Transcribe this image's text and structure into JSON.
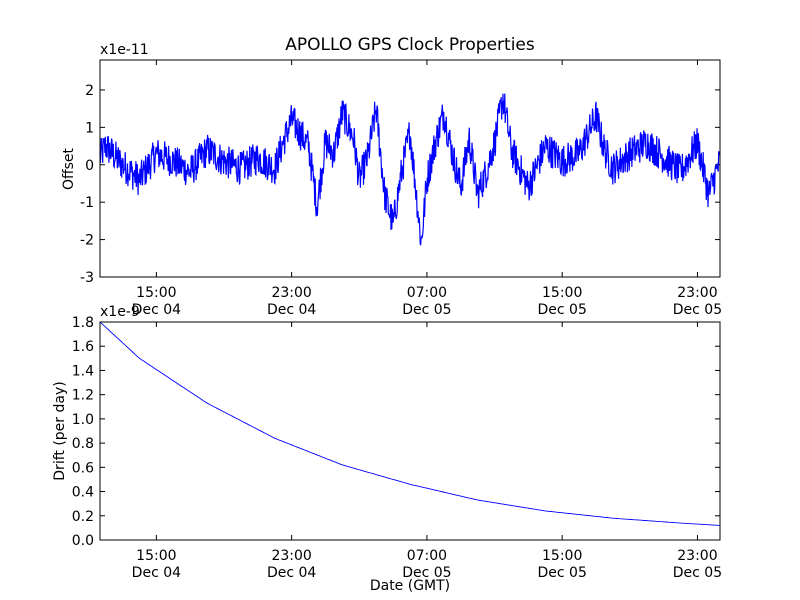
{
  "figure": {
    "title": "APOLLO GPS Clock Properties",
    "xlabel": "Date (GMT)"
  },
  "chart_data": [
    {
      "type": "line",
      "ylabel": "Offset",
      "y_scale_label": "x1e-11",
      "xlim": [
        "2014-12-04T11:40",
        "2014-12-06T00:20"
      ],
      "ylim": [
        -3,
        2.8
      ],
      "yticks": [
        -3,
        -2,
        -1,
        0,
        1,
        2
      ],
      "xticks": [
        {
          "line1": "15:00",
          "line2": "Dec 04"
        },
        {
          "line1": "23:00",
          "line2": "Dec 04"
        },
        {
          "line1": "07:00",
          "line2": "Dec 05"
        },
        {
          "line1": "15:00",
          "line2": "Dec 05"
        },
        {
          "line1": "23:00",
          "line2": "Dec 05"
        }
      ],
      "color": "#0000ff",
      "series": [
        {
          "x": [
            "2014-12-04T11:40",
            "2014-12-04T12:00",
            "2014-12-04T13:00",
            "2014-12-04T14:00",
            "2014-12-04T15:00",
            "2014-12-04T16:00",
            "2014-12-04T17:00",
            "2014-12-04T18:00",
            "2014-12-04T19:00",
            "2014-12-04T20:00",
            "2014-12-04T21:00",
            "2014-12-04T22:00",
            "2014-12-04T22:30",
            "2014-12-04T23:00",
            "2014-12-05T00:00",
            "2014-12-05T00:30",
            "2014-12-05T01:00",
            "2014-12-05T01:30",
            "2014-12-05T02:00",
            "2014-12-05T02:40",
            "2014-12-05T03:00",
            "2014-12-05T03:30",
            "2014-12-05T04:00",
            "2014-12-05T04:30",
            "2014-12-05T05:00",
            "2014-12-05T05:30",
            "2014-12-05T06:00",
            "2014-12-05T06:40",
            "2014-12-05T07:00",
            "2014-12-05T07:30",
            "2014-12-05T08:00",
            "2014-12-05T08:30",
            "2014-12-05T09:00",
            "2014-12-05T09:30",
            "2014-12-05T10:00",
            "2014-12-05T10:30",
            "2014-12-05T11:00",
            "2014-12-05T11:30",
            "2014-12-05T12:00",
            "2014-12-05T13:00",
            "2014-12-05T14:00",
            "2014-12-05T15:00",
            "2014-12-05T16:00",
            "2014-12-05T17:00",
            "2014-12-05T17:30",
            "2014-12-05T18:00",
            "2014-12-05T19:00",
            "2014-12-05T20:00",
            "2014-12-05T21:00",
            "2014-12-05T22:00",
            "2014-12-05T23:00",
            "2014-12-05T23:40",
            "2014-12-06T00:20"
          ],
          "y": [
            0.2,
            0.5,
            0.0,
            -0.4,
            0.3,
            0.1,
            -0.2,
            0.4,
            0.1,
            -0.1,
            0.2,
            -0.1,
            0.6,
            1.2,
            0.5,
            -1.1,
            0.6,
            0.3,
            1.4,
            0.7,
            -0.4,
            0.2,
            1.5,
            -0.8,
            -1.6,
            -0.2,
            0.9,
            -2.1,
            -0.4,
            0.6,
            1.4,
            0.3,
            -0.6,
            0.7,
            -0.8,
            -0.2,
            0.6,
            1.8,
            0.4,
            -0.6,
            0.5,
            0.1,
            0.3,
            1.3,
            0.4,
            -0.1,
            0.3,
            0.6,
            0.2,
            -0.2,
            0.6,
            -0.8,
            0.1
          ]
        }
      ]
    },
    {
      "type": "line",
      "ylabel": "Drift (per day)",
      "y_scale_label": "x1e-9",
      "xlim": [
        "2014-12-04T11:40",
        "2014-12-06T00:20"
      ],
      "ylim": [
        0.0,
        1.8
      ],
      "yticks": [
        "0.0",
        "0.2",
        "0.4",
        "0.6",
        "0.8",
        "1.0",
        "1.2",
        "1.4",
        "1.6",
        "1.8"
      ],
      "xticks": [
        {
          "line1": "15:00",
          "line2": "Dec 04"
        },
        {
          "line1": "23:00",
          "line2": "Dec 04"
        },
        {
          "line1": "07:00",
          "line2": "Dec 05"
        },
        {
          "line1": "15:00",
          "line2": "Dec 05"
        },
        {
          "line1": "23:00",
          "line2": "Dec 05"
        }
      ],
      "color": "#0000ff",
      "series": [
        {
          "x": [
            "2014-12-04T11:40",
            "2014-12-04T14:00",
            "2014-12-04T18:00",
            "2014-12-04T22:00",
            "2014-12-05T02:00",
            "2014-12-05T06:00",
            "2014-12-05T10:00",
            "2014-12-05T14:00",
            "2014-12-05T18:00",
            "2014-12-05T22:00",
            "2014-12-06T00:20"
          ],
          "y": [
            1.8,
            1.5,
            1.13,
            0.84,
            0.62,
            0.46,
            0.33,
            0.24,
            0.18,
            0.14,
            0.12
          ]
        }
      ]
    }
  ]
}
